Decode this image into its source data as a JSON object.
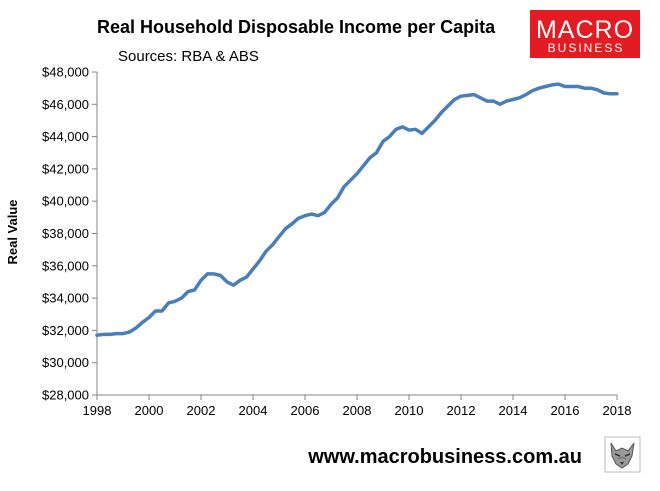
{
  "chart_data": {
    "type": "line",
    "title": "Real Household Disposable Income per Capita",
    "subtitle": "Sources: RBA & ABS",
    "xlabel": "",
    "ylabel": "Real Value",
    "xlim": [
      1998,
      2018
    ],
    "ylim": [
      28000,
      48000
    ],
    "x_ticks": [
      1998,
      2000,
      2002,
      2004,
      2006,
      2008,
      2010,
      2012,
      2014,
      2016,
      2018
    ],
    "y_ticks": [
      28000,
      30000,
      32000,
      34000,
      36000,
      38000,
      40000,
      42000,
      44000,
      46000,
      48000
    ],
    "y_tick_labels": [
      "$28,000",
      "$30,000",
      "$32,000",
      "$34,000",
      "$36,000",
      "$38,000",
      "$40,000",
      "$42,000",
      "$44,000",
      "$46,000",
      "$48,000"
    ],
    "grid": false,
    "legend": "none",
    "series_color": "#4a7ebb",
    "series": [
      {
        "x": [
          1998.0,
          1998.25,
          1998.5,
          1998.75,
          1999.0,
          1999.25,
          1999.5,
          1999.75,
          2000.0,
          2000.25,
          2000.5,
          2000.75,
          2001.0,
          2001.25,
          2001.5,
          2001.75,
          2002.0,
          2002.25,
          2002.5,
          2002.75,
          2003.0,
          2003.25,
          2003.5,
          2003.75,
          2004.0,
          2004.25,
          2004.5,
          2004.75,
          2005.0,
          2005.25,
          2005.5,
          2005.75,
          2006.0,
          2006.25,
          2006.5,
          2006.75,
          2007.0,
          2007.25,
          2007.5,
          2007.75,
          2008.0,
          2008.25,
          2008.5,
          2008.75,
          2009.0,
          2009.25,
          2009.5,
          2009.75,
          2010.0,
          2010.25,
          2010.5,
          2010.75,
          2011.0,
          2011.25,
          2011.5,
          2011.75,
          2012.0,
          2012.25,
          2012.5,
          2012.75,
          2013.0,
          2013.25,
          2013.5,
          2013.75,
          2014.0,
          2014.25,
          2014.5,
          2014.75,
          2015.0,
          2015.25,
          2015.5,
          2015.75,
          2016.0,
          2016.25,
          2016.5,
          2016.75,
          2017.0,
          2017.25,
          2017.5,
          2017.75,
          2018.0
        ],
        "values": [
          31700,
          31750,
          31750,
          31800,
          31800,
          31900,
          32150,
          32500,
          32800,
          33200,
          33200,
          33700,
          33800,
          34000,
          34400,
          34500,
          35100,
          35500,
          35500,
          35400,
          35000,
          34800,
          35100,
          35300,
          35800,
          36300,
          36900,
          37300,
          37800,
          38300,
          38600,
          38950,
          39100,
          39200,
          39100,
          39300,
          39800,
          40200,
          40900,
          41300,
          41700,
          42200,
          42700,
          43000,
          43700,
          44000,
          44450,
          44600,
          44400,
          44450,
          44200,
          44600,
          45000,
          45500,
          45900,
          46300,
          46500,
          46550,
          46600,
          46400,
          46200,
          46200,
          46000,
          46200,
          46300,
          46400,
          46600,
          46850,
          47000,
          47100,
          47200,
          47250,
          47100,
          47100,
          47100,
          47000,
          47000,
          46900,
          46700,
          46650,
          46650
        ]
      }
    ]
  },
  "branding": {
    "logo_line1": "MACRO",
    "logo_line2": "BUSINESS",
    "logo_color": "#e31b23",
    "url": "www.macrobusiness.com.au",
    "mascot_icon": "wolf-head-icon"
  }
}
